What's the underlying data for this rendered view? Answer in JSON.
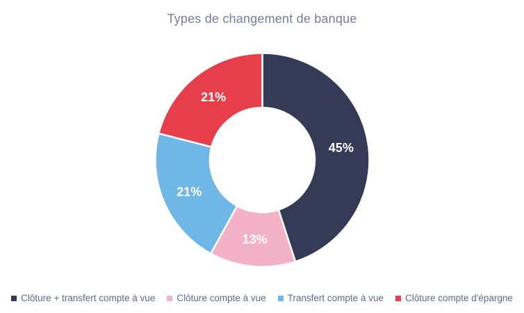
{
  "title": "Types de changement de banque",
  "colors": {
    "background": "#ffffff",
    "title_text": "#737ba6",
    "legend_text": "#5d6894",
    "slice_label_text": "#ffffff",
    "slice_separator": "#ffffff"
  },
  "legend": {
    "position": "bottom",
    "marker_shape": "square"
  },
  "chart_data": {
    "type": "pie",
    "subtype": "donut",
    "title": "Types de changement de banque",
    "start_angle_deg": 0,
    "direction": "clockwise",
    "inner_radius_ratio": 0.49,
    "legend_position": "bottom",
    "series": [
      {
        "label": "Clôture + transfert compte à vue",
        "value": 45,
        "display": "45%",
        "color": "#353a56"
      },
      {
        "label": "Clôture compte à vue",
        "value": 13,
        "display": "13%",
        "color": "#f4b2c9"
      },
      {
        "label": "Transfert compte à vue",
        "value": 21,
        "display": "21%",
        "color": "#6fb7e7"
      },
      {
        "label": "Clôture compte d'épargne",
        "value": 21,
        "display": "21%",
        "color": "#e73e4b"
      }
    ]
  }
}
